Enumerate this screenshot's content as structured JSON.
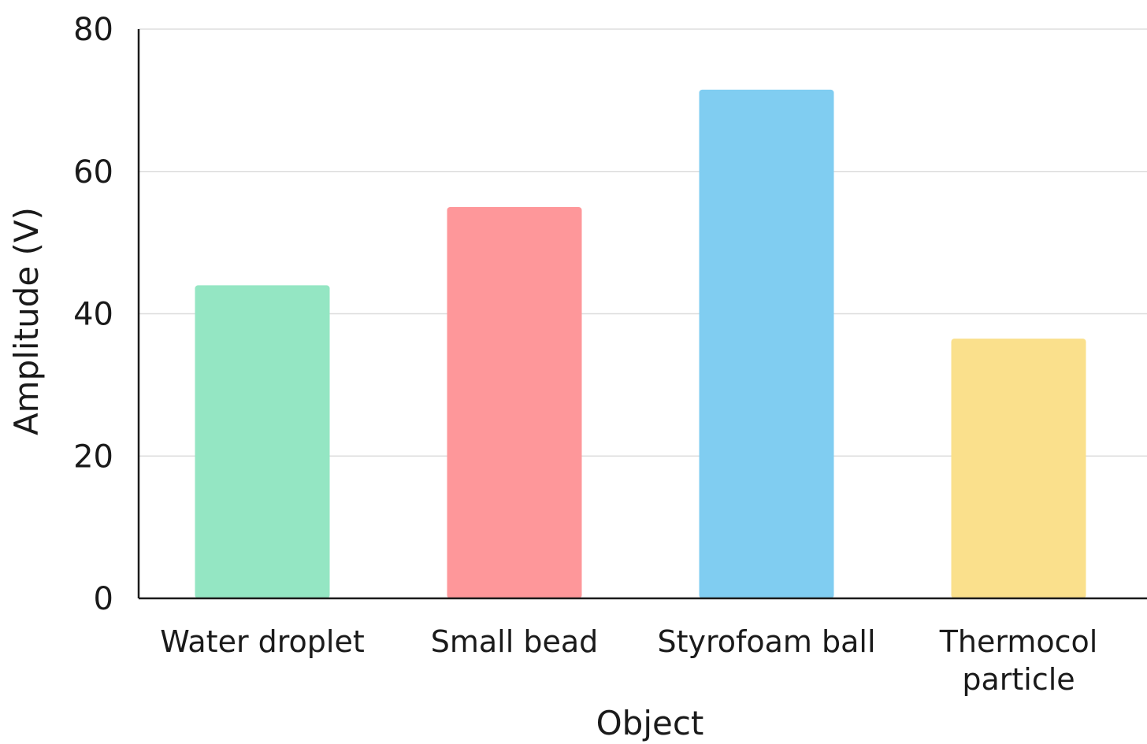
{
  "chart_data": {
    "type": "bar",
    "title": "",
    "xlabel": "Object",
    "ylabel": "Amplitude (V)",
    "categories": [
      [
        "Water droplet"
      ],
      [
        "Small bead"
      ],
      [
        "Styrofoam ball"
      ],
      [
        "Thermocol",
        "particle"
      ]
    ],
    "values": [
      44,
      55,
      71.5,
      36.5
    ],
    "colors": [
      "#94e6c3",
      "#fe979a",
      "#80cdf1",
      "#fae08c"
    ],
    "ylim": [
      0,
      80
    ],
    "yticks": [
      0,
      20,
      40,
      60,
      80
    ],
    "grid": true,
    "legend": "none"
  }
}
